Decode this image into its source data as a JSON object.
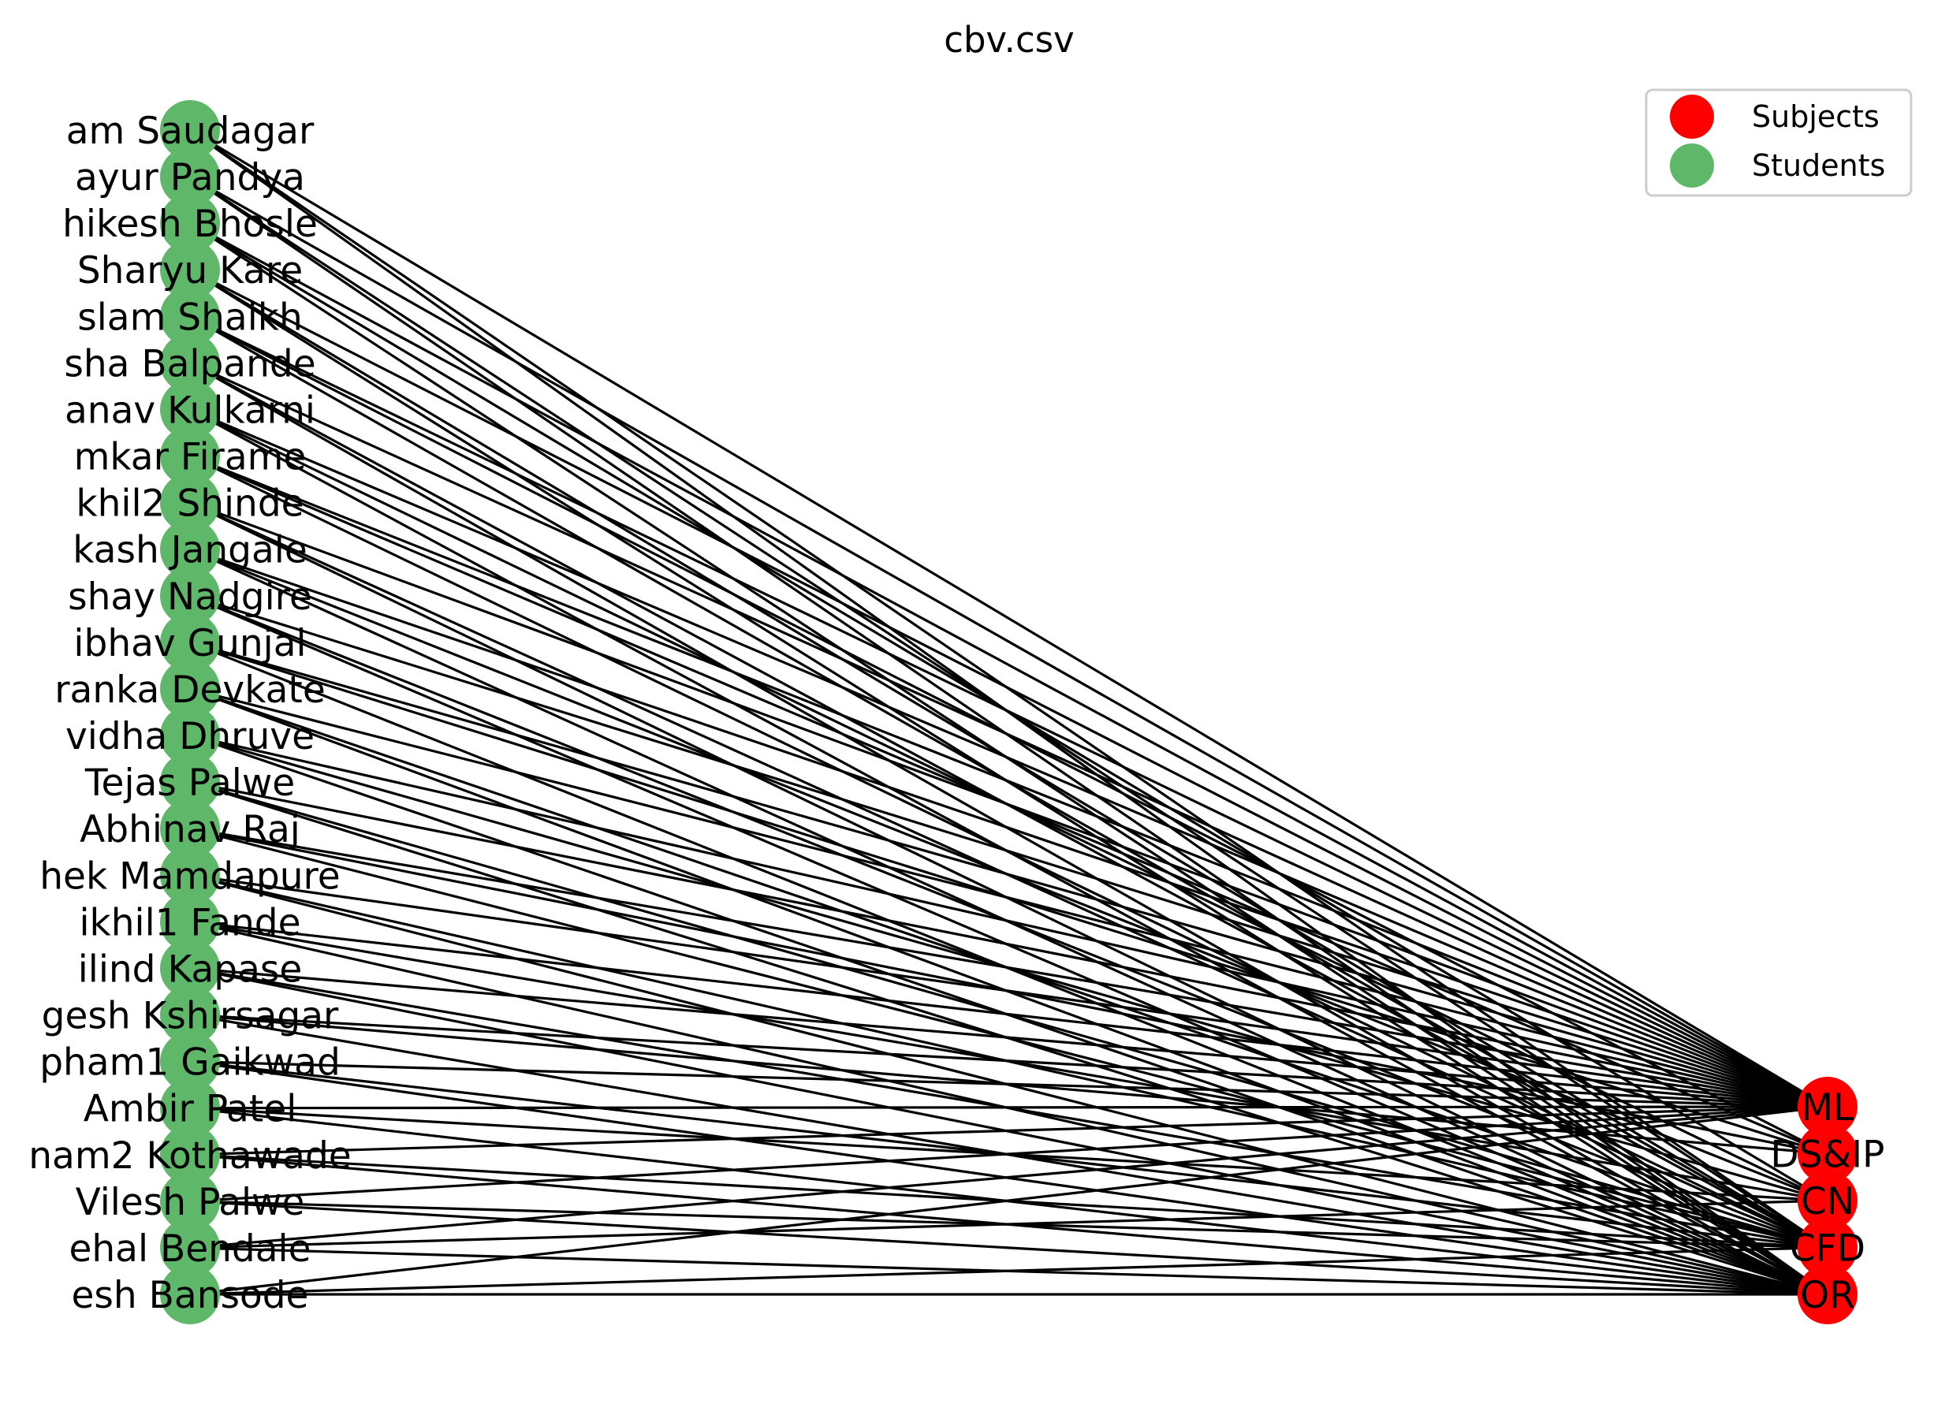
{
  "title": "cbv.csv",
  "legend": {
    "placement": "top-right",
    "entries": [
      {
        "label": "Subjects",
        "color": "#ff0000"
      },
      {
        "label": "Students",
        "color": "#5fb86a"
      }
    ]
  },
  "colors": {
    "subject": "#ff0000",
    "student": "#5fb86a",
    "edge": "#000000"
  },
  "students": [
    "am Saudagar",
    "ayur Pandya",
    "hikesh Bhosle",
    "Sharyu Kare",
    "slam Shaikh",
    "sha Balpande",
    "anav Kulkarni",
    "mkar Firame",
    "khil2 Shinde",
    "kash Jangale",
    "shay Nadgire",
    "ibhav Gunjal",
    "ranka Devkate",
    "vidha Dhruve",
    "Tejas Palwe",
    "Abhinav Raj",
    "hek Mamdapure",
    "ikhil1 Fande",
    "ilind Kapase",
    "gesh Kshirsagar",
    "pham1 Gaikwad",
    "Ambir Patel",
    "nam2 Kothawade",
    "Vilesh Palwe",
    "ehal Bendale",
    "esh Bansode"
  ],
  "subjects": [
    "ML",
    "DS&IP",
    "CN",
    "CFD",
    "OR"
  ],
  "edges": [
    [
      0,
      0
    ],
    [
      0,
      3
    ],
    [
      0,
      4
    ],
    [
      1,
      0
    ],
    [
      1,
      3
    ],
    [
      1,
      4
    ],
    [
      2,
      0
    ],
    [
      2,
      2
    ],
    [
      2,
      4
    ],
    [
      3,
      0
    ],
    [
      3,
      3
    ],
    [
      3,
      4
    ],
    [
      4,
      0
    ],
    [
      4,
      1
    ],
    [
      4,
      3
    ],
    [
      5,
      0
    ],
    [
      5,
      3
    ],
    [
      5,
      4
    ],
    [
      6,
      0
    ],
    [
      6,
      2
    ],
    [
      6,
      4
    ],
    [
      7,
      0
    ],
    [
      7,
      1
    ],
    [
      7,
      3
    ],
    [
      8,
      0
    ],
    [
      8,
      3
    ],
    [
      8,
      4
    ],
    [
      9,
      0
    ],
    [
      9,
      2
    ],
    [
      9,
      4
    ],
    [
      10,
      0
    ],
    [
      10,
      3
    ],
    [
      10,
      4
    ],
    [
      11,
      0
    ],
    [
      11,
      1
    ],
    [
      11,
      4
    ],
    [
      12,
      0
    ],
    [
      12,
      3
    ],
    [
      12,
      4
    ],
    [
      13,
      0
    ],
    [
      13,
      2
    ],
    [
      13,
      4
    ],
    [
      14,
      0
    ],
    [
      14,
      3
    ],
    [
      14,
      4
    ],
    [
      15,
      0
    ],
    [
      15,
      1
    ],
    [
      15,
      3
    ],
    [
      16,
      0
    ],
    [
      16,
      3
    ],
    [
      16,
      4
    ],
    [
      17,
      0
    ],
    [
      17,
      2
    ],
    [
      17,
      4
    ],
    [
      18,
      0
    ],
    [
      18,
      3
    ],
    [
      18,
      4
    ],
    [
      19,
      0
    ],
    [
      19,
      1
    ],
    [
      19,
      4
    ],
    [
      20,
      0
    ],
    [
      20,
      3
    ],
    [
      20,
      4
    ],
    [
      21,
      0
    ],
    [
      21,
      2
    ],
    [
      21,
      4
    ],
    [
      22,
      0
    ],
    [
      22,
      3
    ],
    [
      22,
      4
    ],
    [
      23,
      0
    ],
    [
      23,
      3
    ],
    [
      23,
      4
    ],
    [
      24,
      0
    ],
    [
      24,
      2
    ],
    [
      24,
      4
    ],
    [
      25,
      0
    ],
    [
      25,
      3
    ],
    [
      25,
      4
    ]
  ]
}
